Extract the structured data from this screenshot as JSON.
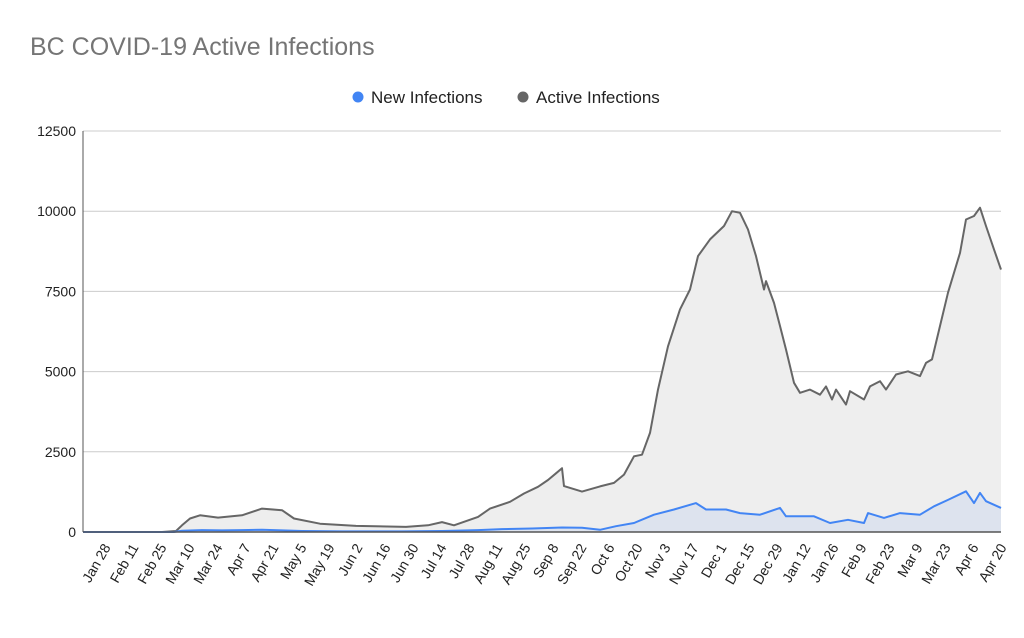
{
  "chart_data": {
    "type": "area",
    "title": "BC COVID-19 Active Infections",
    "xlabel": "",
    "ylabel": "",
    "x_unit": "days since Jan 28 (2020)",
    "xlim": [
      -9.5,
      449.5
    ],
    "ylim": [
      0,
      12500
    ],
    "grid": true,
    "legend_position": "top",
    "y_ticks": [
      0,
      2500,
      5000,
      7500,
      10000,
      12500
    ],
    "y_tick_labels": [
      "0",
      "2500",
      "5000",
      "7500",
      "10000",
      "12500"
    ],
    "x_ticks": [
      0,
      14,
      28,
      42,
      56,
      70,
      84,
      98,
      112,
      126,
      140,
      154,
      168,
      182,
      196,
      210,
      224,
      238,
      252,
      266,
      280,
      294,
      308,
      322,
      336,
      350,
      364,
      378,
      392,
      406,
      420,
      434,
      448
    ],
    "x_tick_labels": [
      "Jan 28",
      "Feb 11",
      "Feb 25",
      "Mar 10",
      "Mar 24",
      "Apr 7",
      "Apr 21",
      "May 5",
      "May 19",
      "Jun 2",
      "Jun 16",
      "Jun 30",
      "Jul 14",
      "Jul 28",
      "Aug 11",
      "Aug 25",
      "Sep 8",
      "Sep 22",
      "Oct 6",
      "Oct 20",
      "Nov 3",
      "Nov 17",
      "Dec 1",
      "Dec 15",
      "Dec 29",
      "Jan 12",
      "Jan 26",
      "Feb 9",
      "Feb 23",
      "Mar 9",
      "Mar 23",
      "Apr 6",
      "Apr 20"
    ],
    "series": [
      {
        "name": "New Infections",
        "color": "#4285f4",
        "fill": "#dde3ee",
        "points": [
          [
            -9.5,
            0
          ],
          [
            36,
            0
          ],
          [
            40,
            40
          ],
          [
            50,
            60
          ],
          [
            60,
            50
          ],
          [
            70,
            60
          ],
          [
            80,
            70
          ],
          [
            90,
            50
          ],
          [
            100,
            30
          ],
          [
            120,
            20
          ],
          [
            150,
            20
          ],
          [
            170,
            30
          ],
          [
            188,
            60
          ],
          [
            200,
            90
          ],
          [
            215,
            110
          ],
          [
            230,
            140
          ],
          [
            240,
            130
          ],
          [
            249,
            70
          ],
          [
            257,
            180
          ],
          [
            266,
            280
          ],
          [
            276,
            540
          ],
          [
            286,
            700
          ],
          [
            297,
            900
          ],
          [
            302,
            700
          ],
          [
            312,
            700
          ],
          [
            319,
            590
          ],
          [
            329,
            540
          ],
          [
            339,
            750
          ],
          [
            342,
            490
          ],
          [
            356,
            490
          ],
          [
            364,
            280
          ],
          [
            373,
            380
          ],
          [
            381,
            280
          ],
          [
            383,
            590
          ],
          [
            391,
            440
          ],
          [
            399,
            590
          ],
          [
            409,
            540
          ],
          [
            416,
            800
          ],
          [
            423,
            1000
          ],
          [
            432,
            1270
          ],
          [
            436,
            900
          ],
          [
            439,
            1220
          ],
          [
            442,
            960
          ],
          [
            449.5,
            750
          ]
        ]
      },
      {
        "name": "Active Infections",
        "color": "#666666",
        "fill": "#eeeeee",
        "points": [
          [
            -9.5,
            0
          ],
          [
            30,
            0
          ],
          [
            37,
            30
          ],
          [
            40,
            210
          ],
          [
            44,
            420
          ],
          [
            49,
            520
          ],
          [
            58,
            450
          ],
          [
            70,
            520
          ],
          [
            80,
            730
          ],
          [
            90,
            680
          ],
          [
            96,
            420
          ],
          [
            109,
            260
          ],
          [
            127,
            190
          ],
          [
            152,
            160
          ],
          [
            163,
            210
          ],
          [
            170,
            310
          ],
          [
            176,
            210
          ],
          [
            188,
            470
          ],
          [
            194,
            730
          ],
          [
            204,
            940
          ],
          [
            211,
            1200
          ],
          [
            218,
            1410
          ],
          [
            223,
            1620
          ],
          [
            227,
            1830
          ],
          [
            230,
            1990
          ],
          [
            231,
            1430
          ],
          [
            240,
            1260
          ],
          [
            249,
            1420
          ],
          [
            256,
            1530
          ],
          [
            261,
            1790
          ],
          [
            266,
            2360
          ],
          [
            270,
            2410
          ],
          [
            274,
            3090
          ],
          [
            278,
            4440
          ],
          [
            283,
            5790
          ],
          [
            289,
            6940
          ],
          [
            294,
            7560
          ],
          [
            298,
            8600
          ],
          [
            304,
            9120
          ],
          [
            311,
            9540
          ],
          [
            315,
            10000
          ],
          [
            319,
            9950
          ],
          [
            323,
            9430
          ],
          [
            327,
            8600
          ],
          [
            331,
            7560
          ],
          [
            332,
            7820
          ],
          [
            336,
            7140
          ],
          [
            339,
            6420
          ],
          [
            342,
            5690
          ],
          [
            346,
            4650
          ],
          [
            349,
            4340
          ],
          [
            354,
            4440
          ],
          [
            359,
            4280
          ],
          [
            362,
            4540
          ],
          [
            365,
            4130
          ],
          [
            367,
            4440
          ],
          [
            372,
            3970
          ],
          [
            374,
            4390
          ],
          [
            381,
            4130
          ],
          [
            384,
            4540
          ],
          [
            389,
            4700
          ],
          [
            392,
            4440
          ],
          [
            397,
            4910
          ],
          [
            403,
            5010
          ],
          [
            409,
            4860
          ],
          [
            412,
            5270
          ],
          [
            415,
            5380
          ],
          [
            419,
            6420
          ],
          [
            423,
            7460
          ],
          [
            429,
            8700
          ],
          [
            432,
            9740
          ],
          [
            436,
            9850
          ],
          [
            439,
            10110
          ],
          [
            442,
            9540
          ],
          [
            446,
            8810
          ],
          [
            449.5,
            8180
          ]
        ]
      }
    ]
  }
}
